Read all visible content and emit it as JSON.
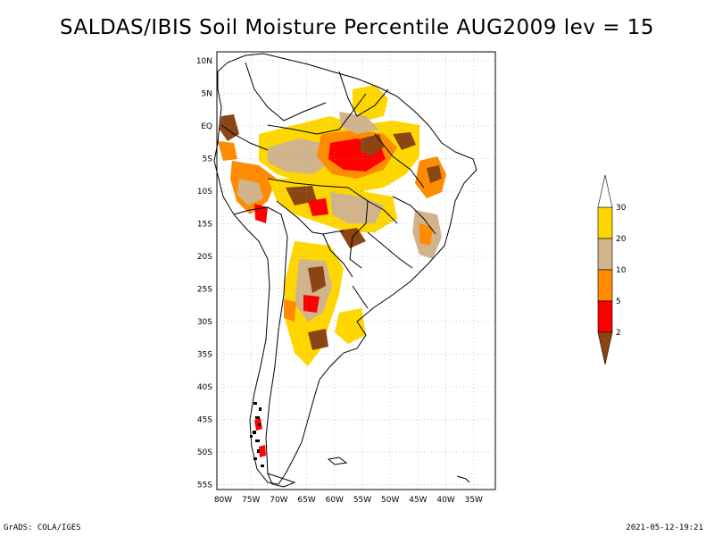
{
  "title": "SALDAS/IBIS Soil Moisture Percentile AUG2009 lev = 15",
  "footer": {
    "left": "GrADS: COLA/IGES",
    "right": "2021-05-12-19:21"
  },
  "axes": {
    "lat_labels": [
      "10N",
      "5N",
      "EQ",
      "5S",
      "10S",
      "15S",
      "20S",
      "25S",
      "30S",
      "35S",
      "40S",
      "45S",
      "50S",
      "55S"
    ],
    "lon_labels": [
      "80W",
      "75W",
      "70W",
      "65W",
      "60W",
      "55W",
      "50W",
      "45W",
      "40W",
      "35W"
    ]
  },
  "legend": {
    "labels": [
      "2",
      "5",
      "10",
      "20",
      "30"
    ],
    "colors": [
      "#8B4513",
      "#FF0000",
      "#FF8C00",
      "#D2B48C",
      "#FFD700",
      "#FFFFFF"
    ]
  },
  "chart_data": {
    "type": "heatmap",
    "title": "SALDAS/IBIS Soil Moisture Percentile AUG2009 lev = 15",
    "xlim": [
      -81,
      -32
    ],
    "ylim": [
      -56,
      11
    ],
    "grid": true,
    "legend_position": "right",
    "bins": [
      {
        "range": "<2",
        "color": "#8B4513"
      },
      {
        "range": "2-5",
        "color": "#FF0000"
      },
      {
        "range": "5-10",
        "color": "#FF8C00"
      },
      {
        "range": "10-20",
        "color": "#D2B48C"
      },
      {
        "range": "20-30",
        "color": "#FFD700"
      },
      {
        "range": ">30",
        "color": "#FFFFFF"
      }
    ]
  }
}
